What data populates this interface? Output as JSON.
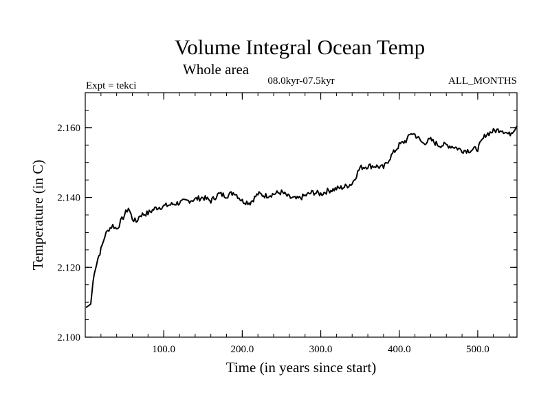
{
  "chart_data": {
    "type": "line",
    "title": "Volume Integral Ocean Temp",
    "subtitle": "Whole area",
    "period_label": "08.0kyr-07.5kyr",
    "expt_label": "Expt = tekci",
    "months_label": "ALL_MONTHS",
    "xlabel": "Time (in years since start)",
    "ylabel": "Temperature (in C)",
    "xlim": [
      0,
      550
    ],
    "ylim": [
      2.1,
      2.17
    ],
    "x_ticks": [
      100,
      200,
      300,
      400,
      500
    ],
    "x_tick_labels": [
      "100.0",
      "200.0",
      "300.0",
      "400.0",
      "500.0"
    ],
    "y_ticks": [
      2.1,
      2.12,
      2.14,
      2.16
    ],
    "y_tick_labels": [
      "2.100",
      "2.120",
      "2.140",
      "2.160"
    ],
    "line_color": "#000000",
    "series": [
      {
        "name": "Volume Integral Ocean Temp",
        "x": [
          1,
          3,
          7,
          10,
          13,
          16,
          20,
          25,
          30,
          35,
          40,
          45,
          50,
          55,
          60,
          65,
          70,
          80,
          90,
          100,
          110,
          120,
          130,
          140,
          150,
          160,
          170,
          180,
          190,
          200,
          210,
          220,
          230,
          240,
          250,
          260,
          270,
          280,
          290,
          300,
          310,
          320,
          330,
          340,
          350,
          360,
          370,
          380,
          390,
          400,
          410,
          415,
          420,
          430,
          440,
          450,
          460,
          470,
          480,
          490,
          500,
          510,
          520,
          530,
          540,
          550
        ],
        "y": [
          2.1085,
          2.1088,
          2.1095,
          2.116,
          2.12,
          2.1225,
          2.125,
          2.129,
          2.131,
          2.132,
          2.131,
          2.133,
          2.135,
          2.137,
          2.134,
          2.133,
          2.135,
          2.1355,
          2.137,
          2.1375,
          2.138,
          2.1385,
          2.139,
          2.1395,
          2.14,
          2.139,
          2.141,
          2.1405,
          2.1415,
          2.139,
          2.1385,
          2.141,
          2.1405,
          2.141,
          2.1415,
          2.14,
          2.1395,
          2.1405,
          2.1415,
          2.141,
          2.142,
          2.1425,
          2.143,
          2.144,
          2.1485,
          2.149,
          2.149,
          2.1485,
          2.152,
          2.155,
          2.1565,
          2.1585,
          2.158,
          2.1555,
          2.1565,
          2.155,
          2.155,
          2.1545,
          2.1535,
          2.1535,
          2.154,
          2.158,
          2.159,
          2.1595,
          2.158,
          2.1605
        ]
      }
    ]
  }
}
